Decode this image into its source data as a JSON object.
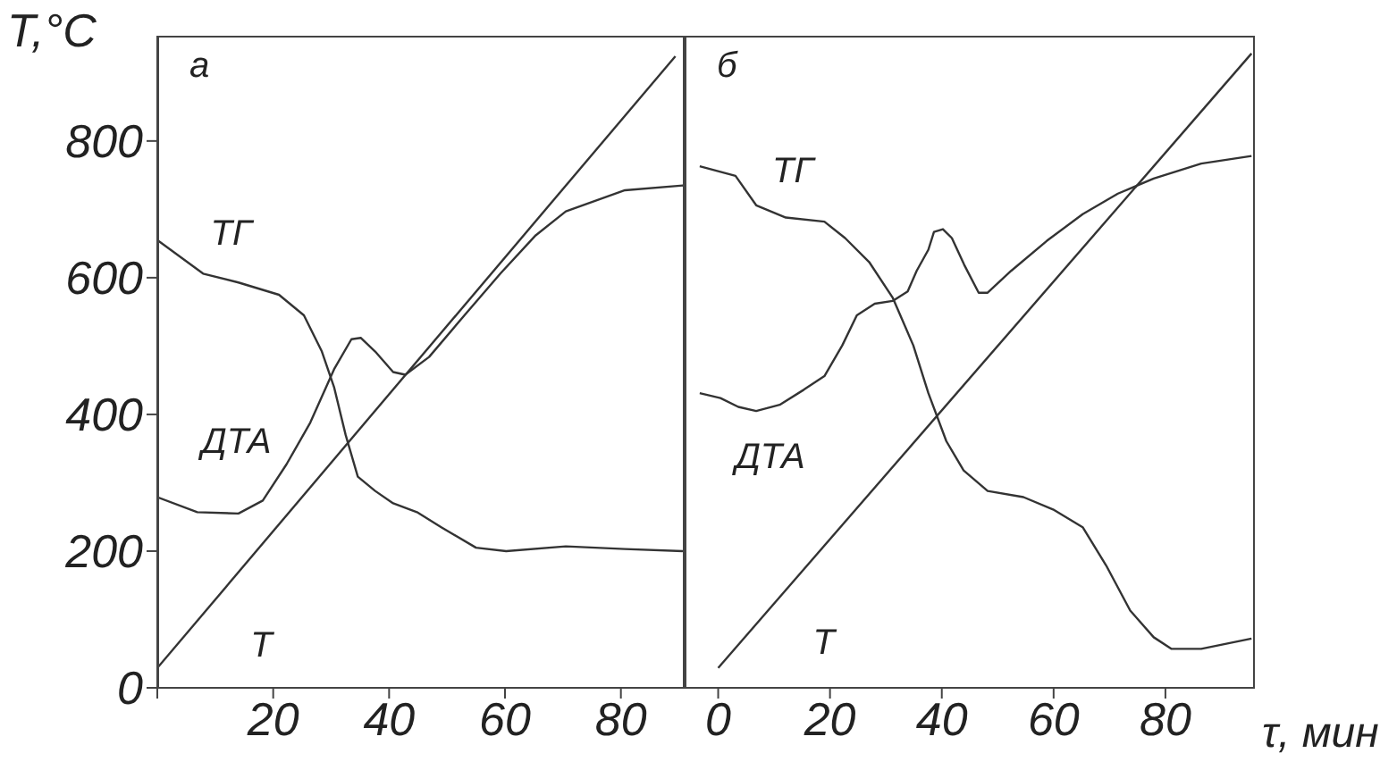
{
  "chart_data": [
    {
      "type": "line",
      "title": "а",
      "ylabel": "T,°C",
      "xlim": [
        0,
        91
      ],
      "xticks": [
        {
          "value": 0,
          "label": null
        },
        20,
        40,
        60,
        80
      ],
      "ylim": [
        0,
        954
      ],
      "yticks": [
        0,
        200,
        400,
        600,
        800
      ],
      "series": [
        {
          "name": "ТГ",
          "color": "#333333",
          "x": [
            0,
            7.9,
            14,
            21,
            25.3,
            28.4,
            30.5,
            32.5,
            34.6,
            37.6,
            40.7,
            44.8,
            49,
            55,
            60.2,
            70.5,
            80.7,
            90.8
          ],
          "values": [
            655,
            606,
            593,
            575,
            545,
            492,
            440,
            370,
            309,
            288,
            270,
            257,
            235,
            205,
            200,
            207,
            203,
            200
          ]
        },
        {
          "name": "ДТА",
          "color": "#333333",
          "x": [
            0,
            6.9,
            14,
            18.2,
            22.3,
            26.4,
            30.5,
            33.5,
            35.1,
            37.6,
            40.7,
            42.8,
            46.9,
            53,
            59.2,
            65.3,
            70.5,
            80.7,
            90.8
          ],
          "values": [
            279,
            257,
            255,
            274,
            327,
            388,
            466,
            510,
            512,
            492,
            462,
            458,
            484,
            545,
            606,
            662,
            697,
            728,
            735
          ]
        },
        {
          "name": "Т",
          "color": "#333333",
          "x": [
            0,
            89.4
          ],
          "values": [
            29,
            924
          ]
        }
      ]
    },
    {
      "type": "line",
      "title": "б",
      "xlabel": "τ, мин",
      "xlim": [
        -6,
        96
      ],
      "xticks": [
        0,
        20,
        40,
        60,
        80
      ],
      "ylim": [
        0,
        954
      ],
      "tick_labels": "x",
      "series": [
        {
          "name": "ТГ",
          "color": "#333333",
          "x": [
            -3.3,
            3.1,
            6.8,
            12.1,
            19,
            22.7,
            27,
            31.2,
            34.9,
            37.6,
            40.8,
            43.9,
            48.2,
            54.6,
            59.9,
            65.2,
            69.4,
            73.7,
            77.9,
            81.1,
            86.4,
            95.4
          ],
          "values": [
            763,
            749,
            706,
            688,
            682,
            658,
            623,
            571,
            501,
            431,
            361,
            318,
            288,
            279,
            261,
            235,
            179,
            113,
            74,
            57,
            57,
            72
          ]
        },
        {
          "name": "ДТА",
          "color": "#333333",
          "x": [
            -3.3,
            0.4,
            3.6,
            6.8,
            11,
            15.3,
            19,
            22.2,
            24.8,
            28,
            31.2,
            33.9,
            35.5,
            37.6,
            38.6,
            40.2,
            41.8,
            44,
            46.6,
            48.2,
            52.4,
            58.8,
            65.2,
            71.5,
            77.9,
            86.4,
            95.4
          ],
          "values": [
            431,
            424,
            411,
            405,
            414,
            436,
            456,
            501,
            545,
            562,
            566,
            580,
            610,
            641,
            667,
            671,
            658,
            619,
            578,
            578,
            610,
            654,
            693,
            723,
            745,
            767,
            778
          ]
        },
        {
          "name": "Т",
          "color": "#333333",
          "x": [
            0,
            95.4
          ],
          "values": [
            29,
            928
          ]
        }
      ]
    }
  ]
}
